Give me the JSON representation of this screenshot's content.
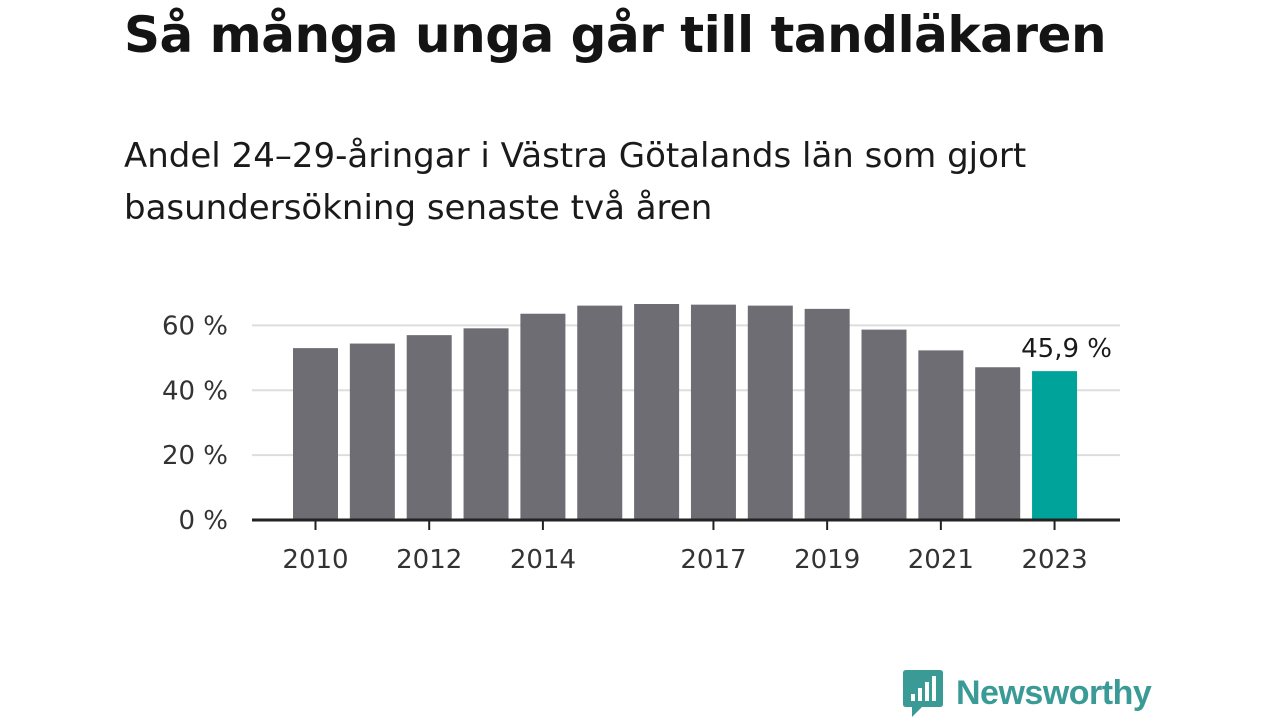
{
  "title": "Så många unga går till tandläkaren",
  "subtitle": "Andel 24–29-åringar i Västra Götalands län som gjort basundersökning senaste två åren",
  "brand": {
    "name": "Newsworthy",
    "color": "#3a9a96",
    "icon": "chart-bubble-icon"
  },
  "colors": {
    "bar": "#6e6d73",
    "highlight": "#00a39a",
    "grid": "#dddddd",
    "axis": "#222222"
  },
  "chart_data": {
    "type": "bar",
    "x": [
      2010,
      2011,
      2012,
      2013,
      2014,
      2015,
      2016,
      2017,
      2018,
      2019,
      2020,
      2021,
      2022,
      2023
    ],
    "values": [
      53,
      54.4,
      57,
      59.1,
      63.6,
      66.1,
      66.6,
      66.4,
      66.1,
      65.1,
      58.7,
      52.3,
      47.1,
      45.9
    ],
    "x_tick_labels": [
      "2010",
      "",
      "2012",
      "",
      "2014",
      "",
      "",
      "2017",
      "",
      "2019",
      "",
      "2021",
      "",
      "2023"
    ],
    "y_ticks": [
      0,
      20,
      40,
      60
    ],
    "y_tick_labels": [
      "0 %",
      "20 %",
      "40 %",
      "60 %"
    ],
    "ylim": [
      0,
      66.6
    ],
    "highlight_index": 13,
    "annotation": {
      "index": 13,
      "text": "45,9 %"
    },
    "grid": true,
    "legend": "none",
    "xlabel": "",
    "ylabel": ""
  }
}
